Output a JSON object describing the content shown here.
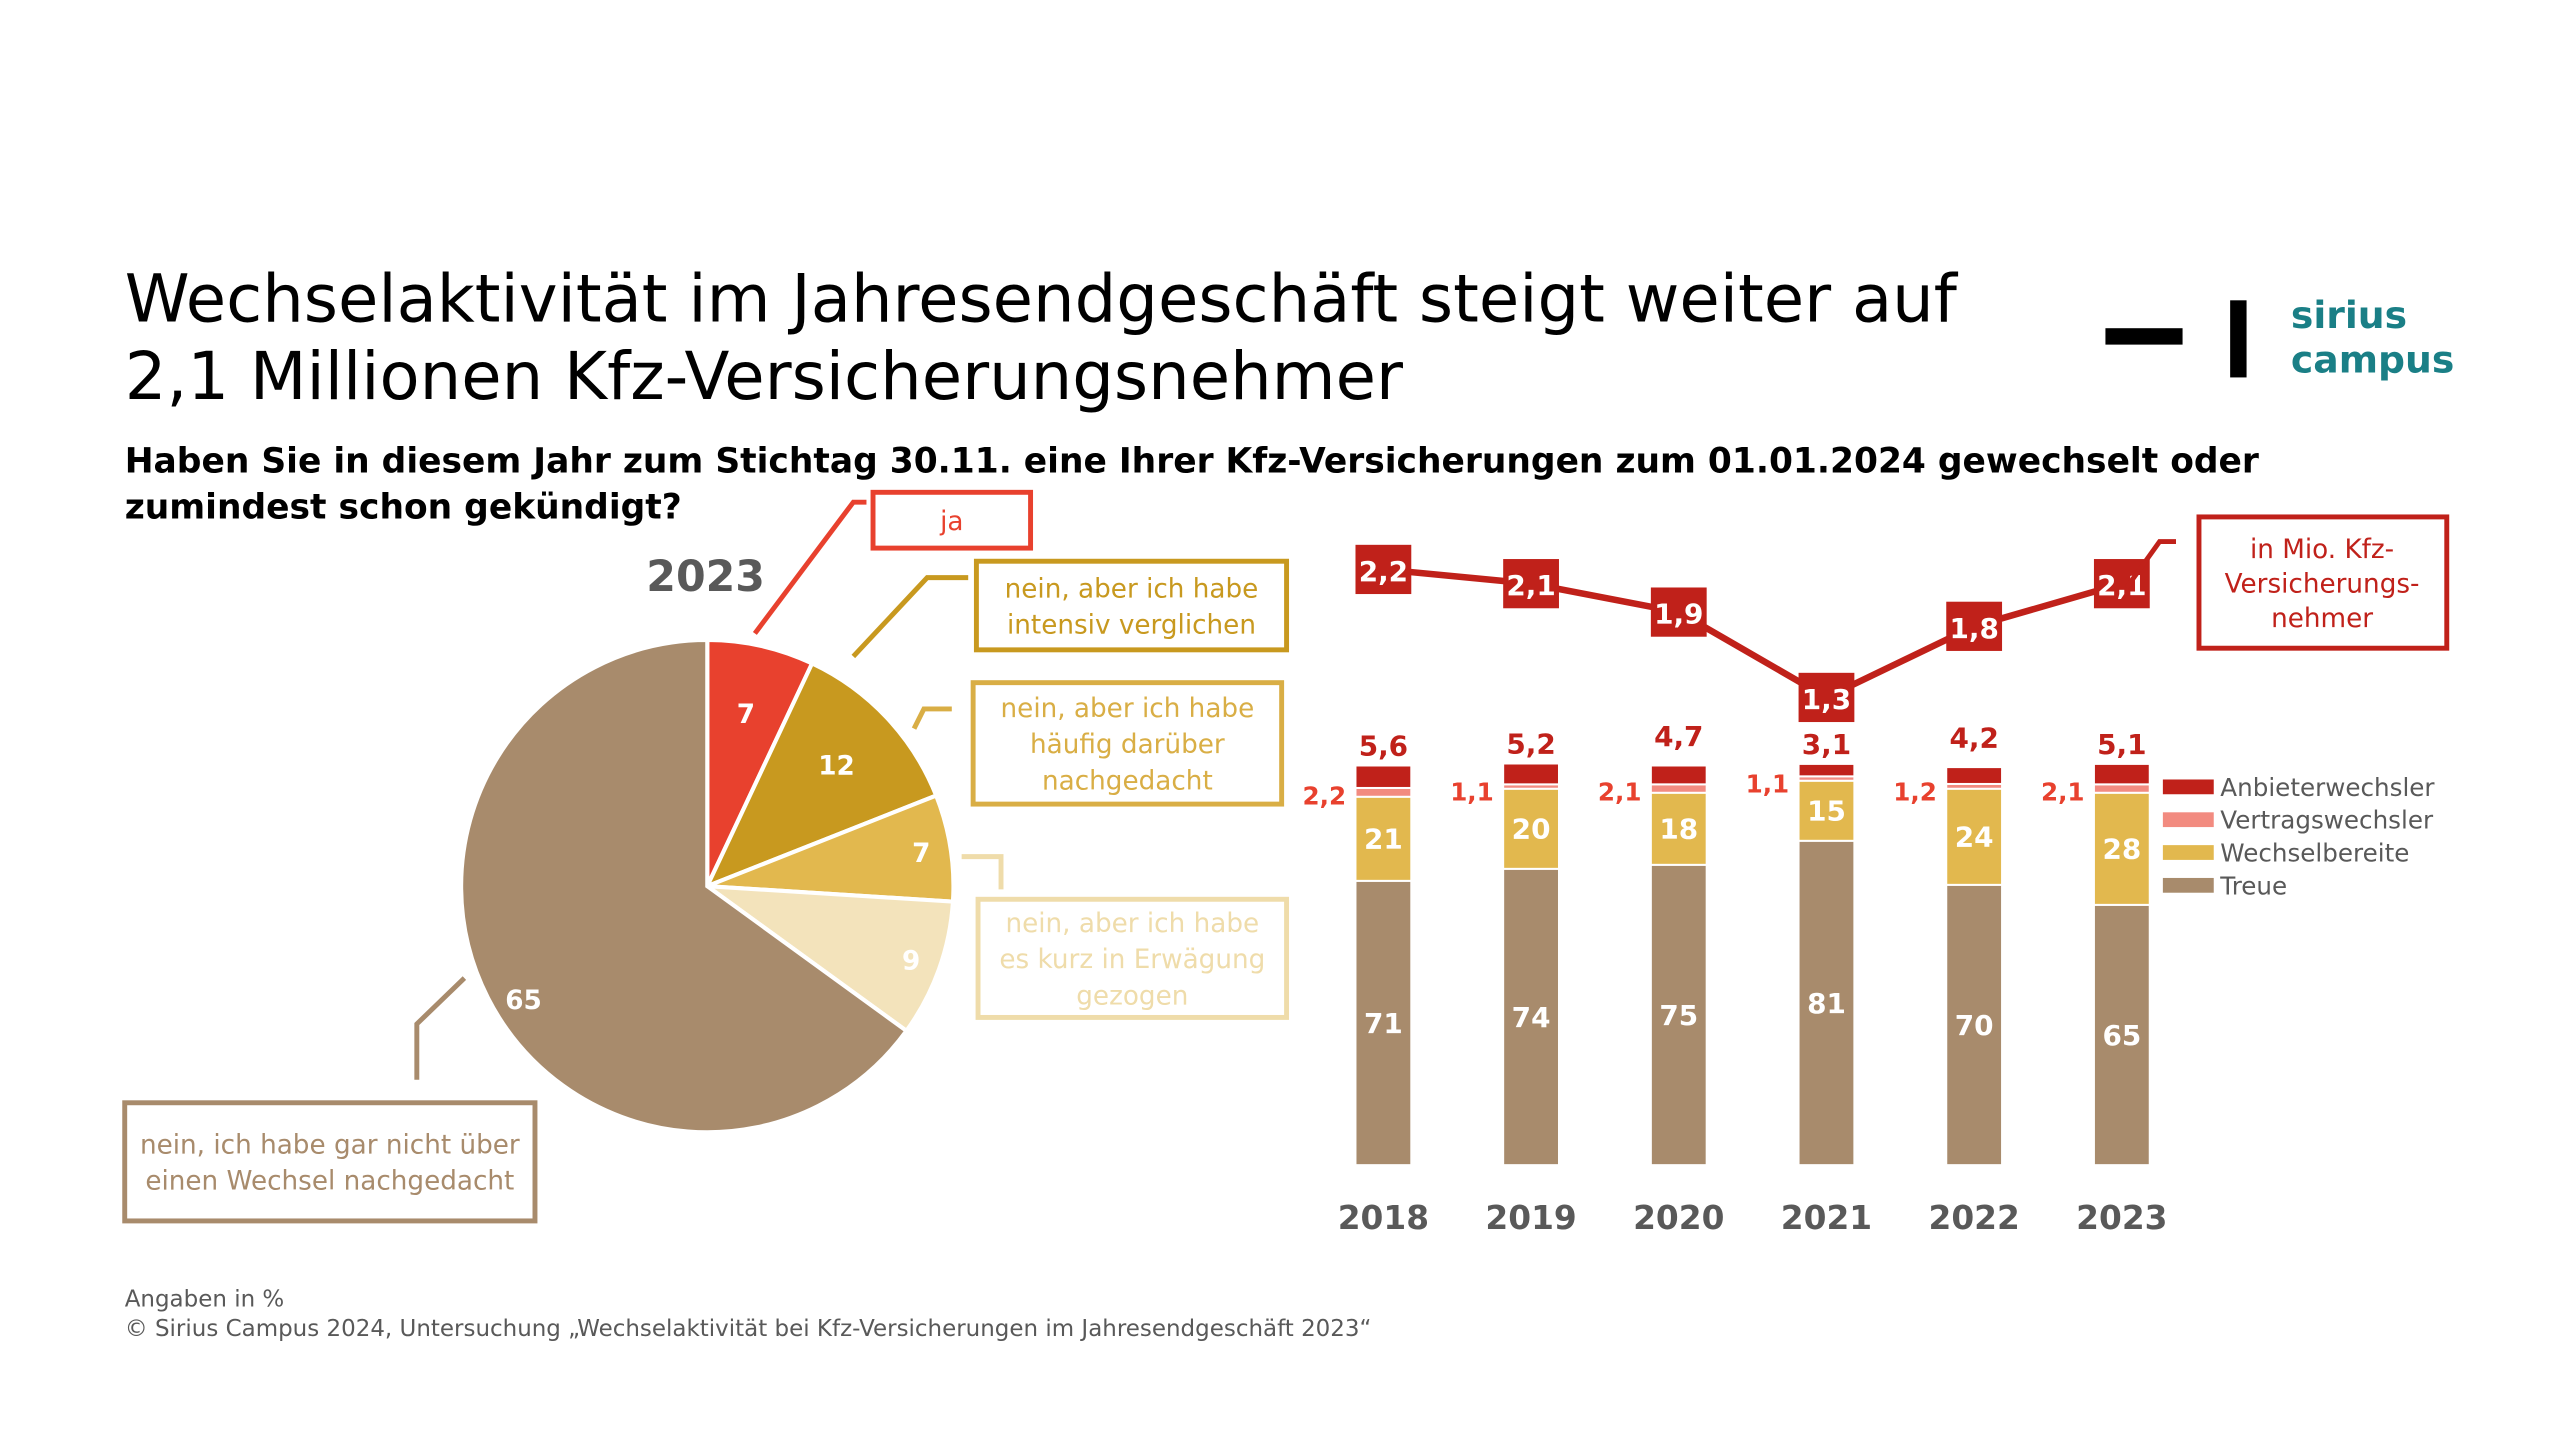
{
  "header": {
    "title_line1": "Wechselaktivität im Jahresendgeschäft steigt weiter auf",
    "title_line2": "2,1 Millionen Kfz-Versicherungsnehmer",
    "question_line1": "Haben Sie in diesem Jahr zum Stichtag 30.11. eine Ihrer Kfz-Versicherungen zum 01.01.2024 gewechselt oder",
    "question_line2": "zumindest schon gekündigt?"
  },
  "logo": {
    "line1": "sirius",
    "line2": "campus",
    "color": "#1a7f86"
  },
  "footer": {
    "note": "Angaben in %",
    "source": "© Sirius Campus 2024, Untersuchung „Wechselaktivität bei Kfz-Versicherungen im Jahresendgeschäft 2023“"
  },
  "chart_data": [
    {
      "type": "pie",
      "title": "2023",
      "unit": "%",
      "start": "12 o'clock, clockwise",
      "slices": [
        {
          "label": "ja",
          "label_lines": [
            "ja"
          ],
          "value": 7,
          "color": "#e8412e",
          "text_color": "#e8412e"
        },
        {
          "label": "nein, aber ich habe intensiv verglichen",
          "label_lines": [
            "nein, aber ich habe",
            "intensiv verglichen"
          ],
          "value": 12,
          "color": "#c8991f",
          "text_color": "#c8991f"
        },
        {
          "label": "nein, aber ich habe häufig darüber nachgedacht",
          "label_lines": [
            "nein, aber ich habe",
            "häufig darüber",
            "nachgedacht"
          ],
          "value": 7,
          "color": "#e2b84e",
          "text_color": "#d9ae45"
        },
        {
          "label": "nein, aber ich habe es kurz in Erwägung gezogen",
          "label_lines": [
            "nein, aber ich habe",
            "es kurz in Erwägung",
            "gezogen"
          ],
          "value": 9,
          "color": "#f3e3bb",
          "text_color": "#efdcaa"
        },
        {
          "label": "nein, ich habe gar nicht über einen Wechsel nachgedacht",
          "label_lines": [
            "nein, ich habe gar nicht über",
            "einen Wechsel nachgedacht"
          ],
          "value": 65,
          "color": "#a88b6c",
          "text_color": "#a88b6c"
        }
      ]
    },
    {
      "type": "bar",
      "stacked": true,
      "unit": "%",
      "categories": [
        "2018",
        "2019",
        "2020",
        "2021",
        "2022",
        "2023"
      ],
      "series": [
        {
          "name": "Treue",
          "values": [
            71,
            74,
            75,
            81,
            70,
            65
          ],
          "color": "#a88b6c"
        },
        {
          "name": "Wechselbereite",
          "values": [
            21,
            20,
            18,
            15,
            24,
            28
          ],
          "color": "#e2b84e"
        },
        {
          "name": "Vertragswechsler",
          "values": [
            2.2,
            1.1,
            2.1,
            1.1,
            1.2,
            2.1
          ],
          "labels": [
            "2,2",
            "1,1",
            "2,1",
            "1,1",
            "1,2",
            "2,1"
          ],
          "color": "#f28b80"
        },
        {
          "name": "Anbieterwechsler",
          "values": [
            5.6,
            5.2,
            4.7,
            3.1,
            4.2,
            5.1
          ],
          "labels": [
            "5,6",
            "5,2",
            "4,7",
            "3,1",
            "4,2",
            "5,1"
          ],
          "color": "#c0211a"
        }
      ],
      "legend": {
        "position": "right",
        "items": [
          {
            "label": "Anbieterwechsler",
            "color": "#c0211a"
          },
          {
            "label": "Vertragswechsler",
            "color": "#f28b80"
          },
          {
            "label": "Wechselbereite",
            "color": "#e2b84e"
          },
          {
            "label": "Treue",
            "color": "#a88b6c"
          }
        ]
      },
      "grid": false
    },
    {
      "type": "line",
      "x": [
        "2018",
        "2019",
        "2020",
        "2021",
        "2022",
        "2023"
      ],
      "series": [
        {
          "name": "Anbieterwechsler in Mio. Kfz-Versicherungsnehmer",
          "values": [
            2.2,
            2.1,
            1.9,
            1.3,
            1.8,
            2.1
          ],
          "labels": [
            "2,2",
            "2,1",
            "1,9",
            "1,3",
            "1,8",
            "2,1"
          ],
          "color": "#c0211a"
        }
      ],
      "annotation": {
        "lines": [
          "in Mio. Kfz-",
          "Versicherungs-",
          "nehmer"
        ],
        "color": "#c0211a"
      }
    }
  ]
}
